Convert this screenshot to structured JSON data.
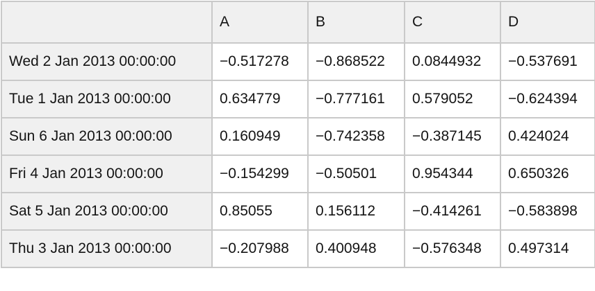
{
  "colors": {
    "header_background": "#f0f0f0",
    "cell_background": "#ffffff",
    "border": "#c9c9c9",
    "text": "#141414"
  },
  "table": {
    "columns": [
      "",
      "A",
      "B",
      "C",
      "D"
    ],
    "rows": [
      {
        "label": "Wed 2 Jan 2013 00:00:00",
        "values": [
          "−0.517278",
          "−0.868522",
          "0.0844932",
          "−0.537691"
        ]
      },
      {
        "label": "Tue 1 Jan 2013 00:00:00",
        "values": [
          "0.634779",
          "−0.777161",
          "0.579052",
          "−0.624394"
        ]
      },
      {
        "label": "Sun 6 Jan 2013 00:00:00",
        "values": [
          "0.160949",
          "−0.742358",
          "−0.387145",
          "0.424024"
        ]
      },
      {
        "label": "Fri 4 Jan 2013 00:00:00",
        "values": [
          "−0.154299",
          "−0.50501",
          "0.954344",
          "0.650326"
        ]
      },
      {
        "label": "Sat 5 Jan 2013 00:00:00",
        "values": [
          "0.85055",
          "0.156112",
          "−0.414261",
          "−0.583898"
        ]
      },
      {
        "label": "Thu 3 Jan 2013 00:00:00",
        "values": [
          "−0.207988",
          "0.400948",
          "−0.576348",
          "0.497314"
        ]
      }
    ]
  },
  "chart_data": {
    "type": "table",
    "columns": [
      "A",
      "B",
      "C",
      "D"
    ],
    "index": [
      "Wed 2 Jan 2013 00:00:00",
      "Tue 1 Jan 2013 00:00:00",
      "Sun 6 Jan 2013 00:00:00",
      "Fri 4 Jan 2013 00:00:00",
      "Sat 5 Jan 2013 00:00:00",
      "Thu 3 Jan 2013 00:00:00"
    ],
    "values": [
      [
        -0.517278,
        -0.868522,
        0.0844932,
        -0.537691
      ],
      [
        0.634779,
        -0.777161,
        0.579052,
        -0.624394
      ],
      [
        0.160949,
        -0.742358,
        -0.387145,
        0.424024
      ],
      [
        -0.154299,
        -0.50501,
        0.954344,
        0.650326
      ],
      [
        0.85055,
        0.156112,
        -0.414261,
        -0.583898
      ],
      [
        -0.207988,
        0.400948,
        -0.576348,
        0.497314
      ]
    ]
  }
}
